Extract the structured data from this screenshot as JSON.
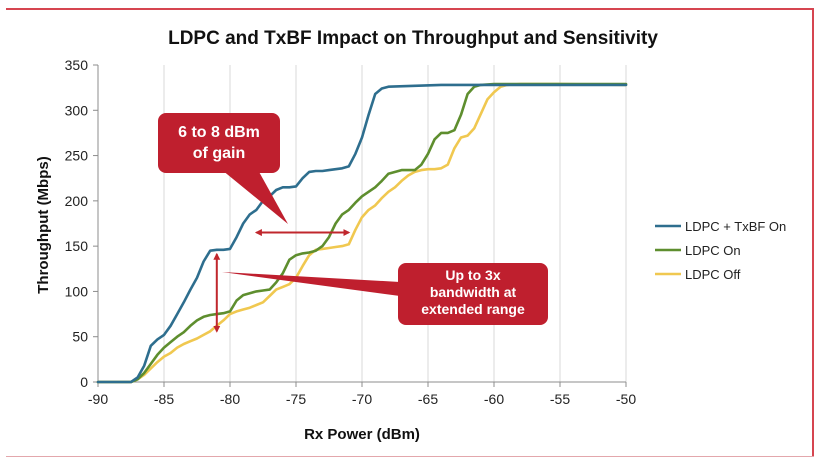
{
  "chart_data": {
    "type": "line",
    "title": "LDPC and TxBF Impact on Throughput and Sensitivity",
    "xlabel": "Rx Power (dBm)",
    "ylabel": "Throughput (Mbps)",
    "xlim": [
      -90,
      -50
    ],
    "ylim": [
      0,
      350
    ],
    "x_ticks": [
      "-90",
      "-85",
      "-80",
      "-75",
      "-70",
      "-65",
      "-60",
      "-55",
      "-50"
    ],
    "y_ticks": [
      "0",
      "50",
      "100",
      "150",
      "200",
      "250",
      "300",
      "350"
    ],
    "grid": "vertical",
    "legend_position": "right",
    "series": [
      {
        "name": "LDPC + TxBF On",
        "color": "#2e6e8e",
        "x": [
          -90,
          -87.5,
          -87,
          -86.5,
          -86,
          -85.5,
          -85,
          -84.5,
          -84,
          -83.5,
          -83,
          -82.5,
          -82,
          -81.5,
          -81,
          -80.5,
          -80,
          -79.5,
          -79,
          -78.5,
          -78,
          -77.5,
          -77,
          -76.5,
          -76,
          -75.5,
          -75,
          -74.5,
          -74,
          -73.5,
          -73,
          -72.5,
          -72,
          -71.5,
          -71,
          -70.5,
          -70,
          -69.5,
          -69,
          -68.5,
          -68,
          -66,
          -64,
          -62,
          -60,
          -58,
          -55,
          -50
        ],
        "y": [
          0,
          0,
          5,
          18,
          40,
          47,
          52,
          62,
          75,
          88,
          102,
          115,
          133,
          145,
          146,
          146,
          147,
          160,
          175,
          185,
          190,
          200,
          205,
          212,
          215,
          215,
          216,
          225,
          232,
          233,
          233,
          234,
          235,
          236,
          238,
          252,
          270,
          295,
          318,
          324,
          326,
          327,
          328,
          328,
          328,
          328,
          328,
          328
        ]
      },
      {
        "name": "LDPC On",
        "color": "#5e8e2e",
        "x": [
          -90,
          -87.5,
          -87,
          -86.5,
          -86,
          -85.5,
          -85,
          -84.5,
          -84,
          -83.5,
          -83,
          -82.5,
          -82,
          -81.5,
          -81,
          -80.5,
          -80,
          -79.5,
          -79,
          -78.5,
          -78,
          -77.5,
          -77,
          -76.5,
          -76,
          -75.5,
          -75,
          -74.5,
          -74,
          -73.5,
          -73,
          -72.5,
          -72,
          -71.5,
          -71,
          -70.5,
          -70,
          -69.5,
          -69,
          -68.5,
          -68,
          -67,
          -66,
          -65.5,
          -65,
          -64.5,
          -64,
          -63.5,
          -63,
          -62.5,
          -62,
          -61.5,
          -61,
          -60,
          -58,
          -55,
          -50
        ],
        "y": [
          0,
          0,
          3,
          10,
          20,
          30,
          38,
          44,
          50,
          55,
          62,
          68,
          72,
          74,
          75,
          76,
          78,
          90,
          96,
          98,
          100,
          101,
          102,
          110,
          120,
          135,
          140,
          142,
          143,
          145,
          150,
          160,
          175,
          185,
          190,
          198,
          205,
          210,
          215,
          222,
          230,
          234,
          234,
          240,
          252,
          268,
          275,
          275,
          278,
          295,
          318,
          326,
          328,
          329,
          329,
          329,
          329
        ]
      },
      {
        "name": "LDPC Off",
        "color": "#f0c850",
        "x": [
          -90,
          -87.5,
          -87,
          -86.5,
          -86,
          -85.5,
          -85,
          -84.5,
          -84,
          -83.5,
          -83,
          -82.5,
          -82,
          -81.5,
          -81,
          -80.5,
          -80,
          -79.5,
          -79,
          -78.5,
          -78,
          -77.5,
          -77,
          -76.5,
          -76,
          -75.5,
          -75,
          -74.5,
          -74,
          -73.5,
          -73,
          -72.5,
          -72,
          -71.5,
          -71,
          -70.5,
          -70,
          -69.5,
          -69,
          -68.5,
          -68,
          -67.5,
          -67,
          -66.5,
          -66,
          -65.5,
          -65,
          -64.5,
          -64,
          -63.5,
          -63,
          -62.5,
          -62,
          -61.5,
          -61,
          -60.5,
          -60,
          -59.5,
          -59,
          -58,
          -55,
          -50
        ],
        "y": [
          0,
          0,
          3,
          8,
          15,
          22,
          28,
          32,
          38,
          42,
          45,
          48,
          52,
          56,
          62,
          68,
          75,
          78,
          80,
          82,
          85,
          88,
          95,
          102,
          105,
          108,
          115,
          128,
          140,
          146,
          147,
          148,
          149,
          150,
          152,
          168,
          182,
          190,
          195,
          203,
          210,
          215,
          222,
          228,
          232,
          234,
          235,
          235,
          236,
          240,
          258,
          270,
          272,
          280,
          296,
          312,
          320,
          326,
          328,
          329,
          329,
          328
        ]
      }
    ],
    "annotations": [
      {
        "text_lines": [
          "6 to 8 dBm",
          "of gain"
        ],
        "arrow": "horizontal",
        "x_from": -78,
        "x_to": -71,
        "y": 165
      },
      {
        "text_lines": [
          "Up to 3x",
          "bandwidth at",
          "extended range"
        ],
        "arrow": "vertical",
        "x": -81,
        "y_from": 141,
        "y_to": 56
      }
    ]
  }
}
